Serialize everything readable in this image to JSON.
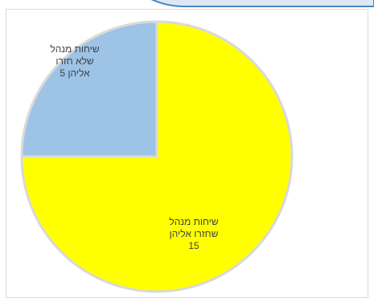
{
  "chart_data": {
    "type": "pie",
    "title": "",
    "slices": [
      {
        "label_lines": [
          "שיחות מנהל",
          "שחזרו אליהן",
          "15"
        ],
        "value": 15,
        "color": "#ffff00"
      },
      {
        "label_lines": [
          "שיחות מנהל",
          "שלא חזרו",
          "אליהן  5"
        ],
        "value": 5,
        "color": "#9dc3e6"
      }
    ],
    "start_angle": "12 o'clock",
    "direction": "clockwise",
    "slice_border_color": "#d9d9d9",
    "grid": false,
    "legend": "none"
  }
}
